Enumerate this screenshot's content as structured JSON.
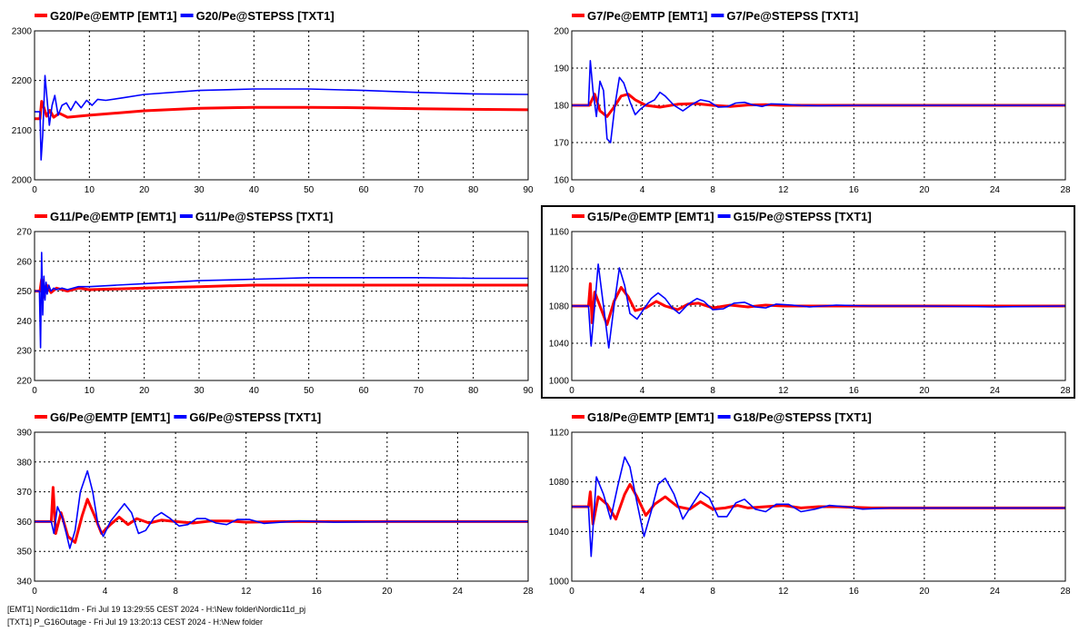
{
  "chart_data": [
    {
      "type": "line",
      "legend": [
        "G20/Pe@EMTP [EMT1]",
        "G20/Pe@STEPSS [TXT1]"
      ],
      "xlim": [
        0,
        90
      ],
      "ylim": [
        2000,
        2300
      ],
      "xticks": [
        0,
        10,
        20,
        30,
        40,
        50,
        60,
        70,
        80,
        90
      ],
      "yticks": [
        2000,
        2100,
        2200,
        2300
      ],
      "grid": true,
      "series": [
        {
          "name": "G20/Pe@EMTP [EMT1]",
          "color": "#ff0000",
          "x": [
            0,
            1,
            1.3,
            1.7,
            2.2,
            2.8,
            3.5,
            4.5,
            6,
            10,
            20,
            30,
            40,
            50,
            60,
            70,
            80,
            90
          ],
          "y": [
            2123,
            2123,
            2158,
            2145,
            2128,
            2140,
            2126,
            2134,
            2126,
            2130,
            2139,
            2144,
            2146,
            2146,
            2145,
            2143,
            2142,
            2141
          ]
        },
        {
          "name": "G20/Pe@STEPSS [TXT1]",
          "color": "#0000ff",
          "x": [
            0,
            1,
            1.2,
            1.5,
            1.9,
            2.3,
            2.7,
            3.2,
            3.7,
            4.3,
            5,
            5.8,
            6.6,
            7.5,
            8.5,
            9.5,
            10.5,
            11.5,
            13,
            16,
            20,
            30,
            40,
            50,
            60,
            70,
            80,
            90
          ],
          "y": [
            2137,
            2137,
            2040,
            2090,
            2210,
            2160,
            2110,
            2150,
            2170,
            2130,
            2150,
            2155,
            2140,
            2158,
            2145,
            2160,
            2150,
            2162,
            2160,
            2165,
            2172,
            2180,
            2183,
            2183,
            2180,
            2176,
            2173,
            2172
          ]
        }
      ]
    },
    {
      "type": "line",
      "legend": [
        "G7/Pe@EMTP [EMT1]",
        "G7/Pe@STEPSS [TXT1]"
      ],
      "xlim": [
        0,
        28
      ],
      "ylim": [
        160,
        200
      ],
      "xticks": [
        0,
        4,
        8,
        12,
        16,
        20,
        24,
        28
      ],
      "yticks": [
        160,
        170,
        180,
        190,
        200
      ],
      "grid": true,
      "series": [
        {
          "name": "G7/Pe@EMTP [EMT1]",
          "color": "#ff0000",
          "x": [
            0,
            1,
            1.3,
            1.6,
            2,
            2.4,
            2.8,
            3.2,
            3.6,
            4.2,
            5,
            6,
            7,
            8,
            9,
            10,
            11,
            12,
            14,
            28
          ],
          "y": [
            180,
            180,
            183,
            178.5,
            177,
            179.5,
            182.5,
            183,
            181.5,
            180,
            179.5,
            180.3,
            180.5,
            180,
            179.7,
            180.1,
            180.2,
            180,
            180,
            180
          ]
        },
        {
          "name": "G7/Pe@STEPSS [TXT1]",
          "color": "#0000ff",
          "x": [
            0,
            0.95,
            1.05,
            1.2,
            1.4,
            1.6,
            1.8,
            2,
            2.2,
            2.45,
            2.7,
            2.95,
            3.3,
            3.6,
            3.9,
            4.3,
            4.7,
            5,
            5.3,
            5.8,
            6.3,
            6.8,
            7.3,
            7.8,
            8.3,
            8.8,
            9.3,
            9.8,
            10.3,
            10.8,
            11.3,
            12,
            13,
            14,
            16,
            20,
            28
          ],
          "y": [
            180,
            180,
            192,
            184,
            177,
            186.5,
            184,
            171,
            170,
            180,
            187.5,
            186,
            181,
            177.5,
            179,
            180.5,
            181.5,
            183.5,
            182.5,
            180,
            178.5,
            180.2,
            181.5,
            181,
            179.5,
            179.6,
            180.6,
            180.8,
            180.1,
            179.7,
            180.4,
            180.3,
            180,
            179.9,
            180,
            180,
            180
          ]
        }
      ]
    },
    {
      "type": "line",
      "legend": [
        "G11/Pe@EMTP [EMT1]",
        "G11/Pe@STEPSS [TXT1]"
      ],
      "xlim": [
        0,
        90
      ],
      "ylim": [
        220,
        270
      ],
      "xticks": [
        0,
        10,
        20,
        30,
        40,
        50,
        60,
        70,
        80,
        90
      ],
      "yticks": [
        220,
        230,
        240,
        250,
        260,
        270
      ],
      "grid": true,
      "series": [
        {
          "name": "G11/Pe@EMTP [EMT1]",
          "color": "#ff0000",
          "x": [
            0,
            1,
            1.3,
            1.7,
            2.2,
            3,
            4,
            6,
            8,
            10,
            20,
            30,
            40,
            50,
            60,
            70,
            80,
            90
          ],
          "y": [
            250,
            250,
            254,
            248,
            252,
            249.5,
            251,
            250,
            251,
            250.5,
            251,
            251.5,
            252,
            252,
            252,
            252,
            252,
            252
          ]
        },
        {
          "name": "G11/Pe@STEPSS [TXT1]",
          "color": "#0000ff",
          "x": [
            0,
            0.9,
            1.1,
            1.3,
            1.5,
            1.7,
            1.9,
            2.1,
            2.3,
            2.6,
            3,
            3.5,
            4,
            5,
            6,
            8,
            10,
            15,
            20,
            30,
            40,
            50,
            60,
            70,
            80,
            90
          ],
          "y": [
            250,
            250,
            231,
            263,
            242,
            255,
            247,
            253,
            249,
            252,
            250,
            251,
            250.5,
            251,
            250.5,
            251.5,
            251.5,
            252,
            252.5,
            253.5,
            254,
            254.5,
            254.5,
            254.5,
            254.3,
            254.3
          ]
        }
      ]
    },
    {
      "type": "line",
      "legend": [
        "G15/Pe@EMTP [EMT1]",
        "G15/Pe@STEPSS [TXT1]"
      ],
      "xlim": [
        0,
        28
      ],
      "ylim": [
        1000,
        1160
      ],
      "xticks": [
        0,
        4,
        8,
        12,
        16,
        20,
        24,
        28
      ],
      "yticks": [
        1000,
        1040,
        1080,
        1120,
        1160
      ],
      "grid": true,
      "series": [
        {
          "name": "G15/Pe@EMTP [EMT1]",
          "color": "#ff0000",
          "x": [
            0,
            0.95,
            1.05,
            1.15,
            1.3,
            1.6,
            2,
            2.4,
            2.8,
            3.2,
            3.6,
            4.2,
            4.8,
            5.3,
            6,
            6.6,
            7.2,
            8,
            9,
            10,
            11,
            12,
            13,
            14,
            17,
            28
          ],
          "y": [
            1080,
            1080,
            1104,
            1062,
            1095,
            1080,
            1060,
            1085,
            1100,
            1090,
            1075,
            1078,
            1085,
            1080,
            1076,
            1082,
            1083,
            1078,
            1081,
            1079,
            1081,
            1080,
            1080,
            1080,
            1080,
            1080
          ]
        },
        {
          "name": "G15/Pe@STEPSS [TXT1]",
          "color": "#0000ff",
          "x": [
            0,
            0.95,
            1.1,
            1.3,
            1.5,
            1.8,
            2.1,
            2.4,
            2.7,
            3,
            3.3,
            3.7,
            4.1,
            4.5,
            4.9,
            5.3,
            5.7,
            6.1,
            6.6,
            7.1,
            7.5,
            8,
            8.6,
            9.2,
            9.8,
            10.4,
            11,
            11.6,
            12.5,
            13.5,
            15,
            17,
            20,
            24,
            28
          ],
          "y": [
            1080,
            1080,
            1037,
            1080,
            1125,
            1080,
            1035,
            1080,
            1121,
            1102,
            1072,
            1066,
            1077,
            1088,
            1094,
            1088,
            1078,
            1072,
            1082,
            1088,
            1085,
            1076,
            1077,
            1083,
            1084,
            1079,
            1078,
            1082,
            1081,
            1079,
            1081,
            1080,
            1080,
            1079,
            1080
          ]
        }
      ]
    },
    {
      "type": "line",
      "legend": [
        "G6/Pe@EMTP [EMT1]",
        "G6/Pe@STEPSS [TXT1]"
      ],
      "xlim": [
        0,
        28
      ],
      "ylim": [
        340,
        390
      ],
      "xticks": [
        0,
        4,
        8,
        12,
        16,
        20,
        24,
        28
      ],
      "yticks": [
        340,
        350,
        360,
        370,
        380,
        390
      ],
      "grid": true,
      "series": [
        {
          "name": "G6/Pe@EMTP [EMT1]",
          "color": "#ff0000",
          "x": [
            0,
            0.95,
            1.05,
            1.2,
            1.5,
            1.9,
            2.3,
            2.7,
            3,
            3.4,
            3.8,
            4.3,
            4.8,
            5.3,
            5.8,
            6.5,
            7.2,
            8,
            9,
            10,
            11,
            12,
            14,
            28
          ],
          "y": [
            360,
            360,
            371.5,
            356,
            363,
            355,
            353,
            362,
            367.5,
            362,
            356,
            359,
            361.5,
            359,
            361,
            359.5,
            360.5,
            360,
            359.5,
            360.2,
            360.2,
            359.8,
            360,
            360
          ]
        },
        {
          "name": "G6/Pe@STEPSS [TXT1]",
          "color": "#0000ff",
          "x": [
            0,
            0.95,
            1.1,
            1.3,
            1.6,
            2,
            2.3,
            2.6,
            3,
            3.3,
            3.6,
            3.9,
            4.3,
            4.7,
            5.1,
            5.5,
            5.9,
            6.3,
            6.8,
            7.2,
            7.7,
            8.2,
            8.7,
            9.2,
            9.7,
            10.3,
            10.9,
            11.5,
            12.2,
            13,
            14,
            15,
            17,
            20,
            28
          ],
          "y": [
            360,
            360,
            356,
            365,
            361,
            351,
            357,
            370,
            377,
            370,
            359,
            355,
            360,
            363,
            366,
            363,
            356,
            357,
            361.5,
            363,
            361,
            358.5,
            359,
            361,
            361,
            359.5,
            359,
            360.7,
            360.7,
            359.4,
            359.8,
            360.2,
            359.8,
            360,
            360
          ]
        }
      ]
    },
    {
      "type": "line",
      "legend": [
        "G18/Pe@EMTP [EMT1]",
        "G18/Pe@STEPSS [TXT1]"
      ],
      "xlim": [
        0,
        28
      ],
      "ylim": [
        1000,
        1120
      ],
      "xticks": [
        0,
        4,
        8,
        12,
        16,
        20,
        24,
        28
      ],
      "yticks": [
        1000,
        1040,
        1080,
        1120
      ],
      "grid": true,
      "series": [
        {
          "name": "G18/Pe@EMTP [EMT1]",
          "color": "#ff0000",
          "x": [
            0,
            0.95,
            1.05,
            1.2,
            1.5,
            2,
            2.5,
            3,
            3.3,
            3.7,
            4.2,
            4.7,
            5.3,
            6,
            6.7,
            7.3,
            8,
            8.7,
            9.4,
            10,
            11,
            12,
            13,
            14,
            15,
            17,
            28
          ],
          "y": [
            1060,
            1060,
            1072,
            1046,
            1068,
            1062,
            1050,
            1070,
            1078,
            1068,
            1053,
            1062,
            1068,
            1060,
            1058,
            1064,
            1058,
            1059,
            1061,
            1059,
            1060,
            1061,
            1059,
            1060,
            1060,
            1059,
            1059
          ]
        },
        {
          "name": "G18/Pe@STEPSS [TXT1]",
          "color": "#0000ff",
          "x": [
            0,
            0.95,
            1.1,
            1.4,
            1.8,
            2.2,
            2.6,
            3,
            3.3,
            3.7,
            4.1,
            4.5,
            4.9,
            5.3,
            5.8,
            6.3,
            6.8,
            7.3,
            7.8,
            8.3,
            8.8,
            9.3,
            9.8,
            10.4,
            11,
            11.6,
            12.3,
            13,
            13.8,
            14.6,
            15.5,
            16.5,
            18,
            20,
            28
          ],
          "y": [
            1060,
            1060,
            1020,
            1084,
            1070,
            1050,
            1076,
            1100,
            1092,
            1063,
            1036,
            1056,
            1078,
            1083,
            1070,
            1050,
            1061,
            1072,
            1067,
            1052,
            1052,
            1063,
            1066,
            1058,
            1056,
            1062,
            1062,
            1056,
            1058,
            1061,
            1060,
            1058,
            1059,
            1059,
            1059
          ]
        }
      ]
    }
  ],
  "footer": {
    "line1": "[EMT1] Nordic11dm - Fri Jul 19 13:29:55 CEST 2024 - H:\\New folder\\Nordic11d_pj",
    "line2": "[TXT1] P_G16Outage - Fri Jul 19 13:20:13 CEST 2024 - H:\\New folder"
  }
}
